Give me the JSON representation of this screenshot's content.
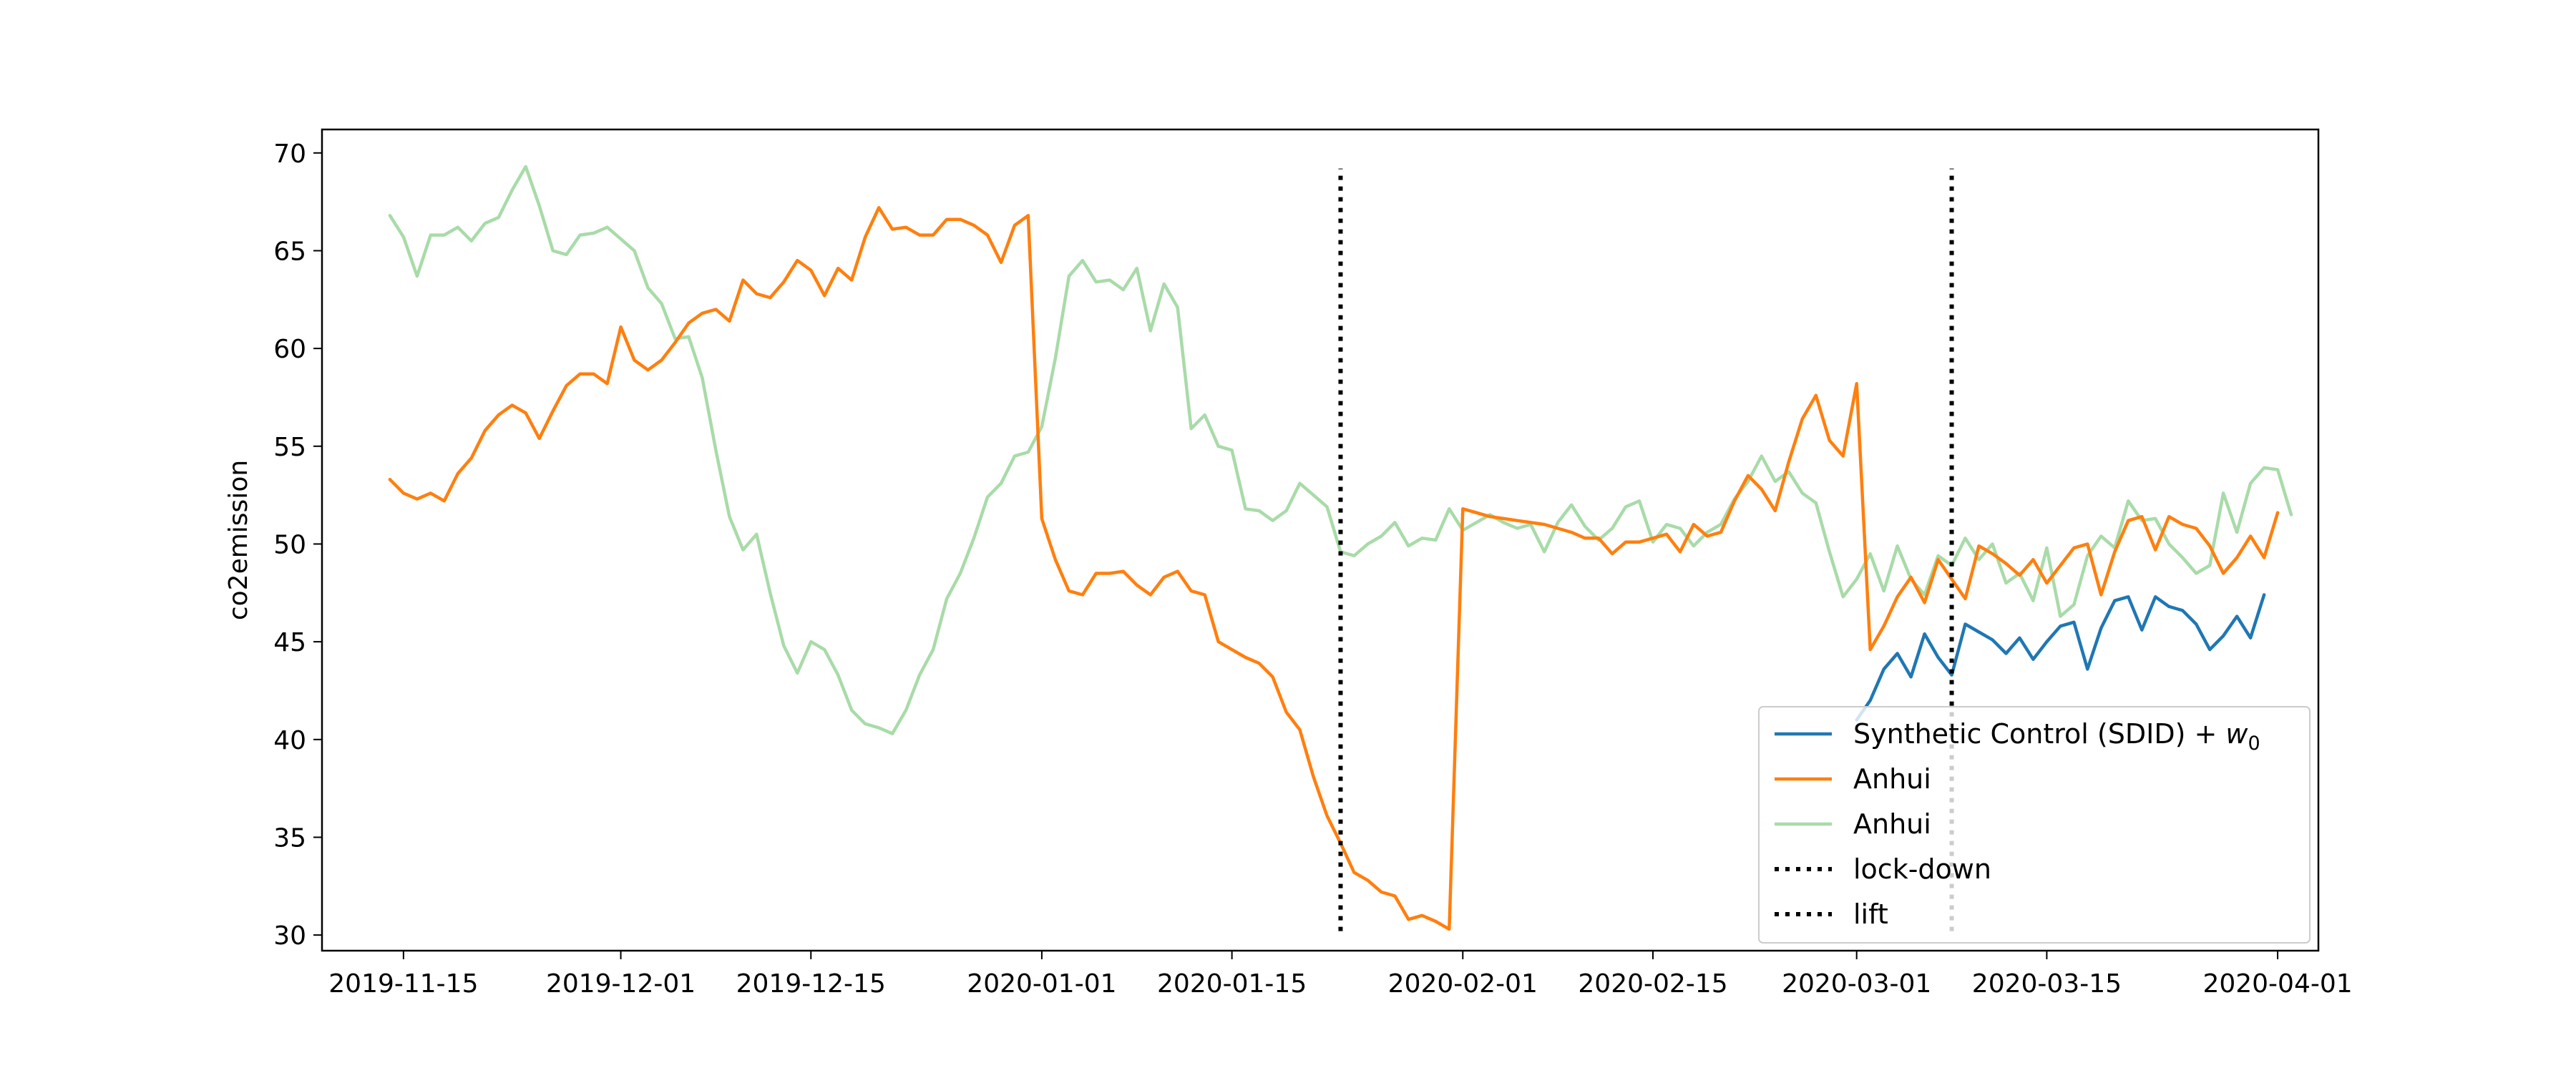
{
  "chart_data": {
    "type": "line",
    "title": "",
    "xlabel": "",
    "ylabel": "co2emission",
    "xlim": [
      "2019-11-09",
      "2020-04-04"
    ],
    "ylim": [
      29.2,
      71.2
    ],
    "x_ticks": [
      "2019-11-15",
      "2019-12-01",
      "2019-12-15",
      "2020-01-01",
      "2020-01-15",
      "2020-02-01",
      "2020-02-15",
      "2020-03-01",
      "2020-03-15",
      "2020-04-01"
    ],
    "y_ticks": [
      30,
      35,
      40,
      45,
      50,
      55,
      60,
      65,
      70
    ],
    "grid": false,
    "legend_position": "bottom-right",
    "legend": [
      {
        "label": "Synthetic Control (SDID) + ",
        "math": "w",
        "sub": "0",
        "color": "#1f77b4",
        "style": "solid"
      },
      {
        "label": "Anhui",
        "color": "#ff7f0e",
        "style": "solid"
      },
      {
        "label": "Anhui",
        "color": "#a8dba8",
        "style": "solid"
      },
      {
        "label": "lock-down",
        "color": "#000000",
        "style": "dotted"
      },
      {
        "label": "lift",
        "color": "#000000",
        "style": "dotted"
      }
    ],
    "series": [
      {
        "color": "#a8dba8",
        "x0": "2019-11-14",
        "values": [
          66.8,
          65.7,
          63.7,
          65.8,
          65.8,
          66.2,
          65.5,
          66.4,
          66.7,
          68.1,
          69.3,
          67.3,
          65.0,
          64.8,
          65.8,
          65.9,
          66.2,
          65.6,
          65.0,
          63.1,
          62.3,
          60.5,
          60.6,
          58.5,
          54.8,
          51.4,
          49.7,
          50.5,
          47.5,
          44.8,
          43.4,
          45.0,
          44.6,
          43.3,
          41.5,
          40.8,
          40.6,
          40.3,
          41.5,
          43.3,
          44.6,
          47.2,
          48.5,
          50.3,
          52.4,
          53.1,
          54.5,
          54.7,
          56.0,
          59.5,
          63.7,
          64.5,
          63.4,
          63.5,
          63.0,
          64.1,
          60.9,
          63.3,
          62.1,
          55.9,
          56.6,
          55.0,
          54.8,
          51.8,
          51.7,
          51.2,
          51.7,
          53.1,
          52.5,
          51.9,
          49.6,
          49.4,
          50.0,
          50.4,
          51.1,
          49.9,
          50.3,
          50.2,
          51.8,
          50.7,
          51.1,
          51.5,
          51.1,
          50.8,
          51.0,
          49.6,
          51.1,
          52.0,
          50.9,
          50.2,
          50.8,
          51.9,
          52.2,
          50.1,
          51.0,
          50.8,
          49.9,
          50.6,
          51.0,
          52.3,
          53.2,
          54.5,
          53.2,
          53.7,
          52.6,
          52.1,
          49.6,
          47.3,
          48.2,
          49.5,
          47.6,
          49.9,
          48.2,
          47.4,
          49.4,
          48.9,
          50.3,
          49.2,
          50.0,
          48.0,
          48.5,
          47.1,
          49.8,
          46.3,
          46.9,
          49.4,
          50.4,
          49.8,
          52.2,
          51.2,
          51.3,
          50.0,
          49.3,
          48.5,
          48.9,
          52.6,
          50.6,
          53.1,
          53.9,
          53.8,
          51.5
        ]
      },
      {
        "color": "#ff7f0e",
        "x0": "2019-11-14",
        "values": [
          53.3,
          52.6,
          52.3,
          52.6,
          52.2,
          53.6,
          54.4,
          55.8,
          56.6,
          57.1,
          56.7,
          55.4,
          56.8,
          58.1,
          58.7,
          58.7,
          58.2,
          61.1,
          59.4,
          58.9,
          59.4,
          60.3,
          61.3,
          61.8,
          62.0,
          61.4,
          63.5,
          62.8,
          62.6,
          63.4,
          64.5,
          64.0,
          62.7,
          64.1,
          63.5,
          65.7,
          67.2,
          66.1,
          66.2,
          65.8,
          65.8,
          66.6,
          66.6,
          66.3,
          65.8,
          64.4,
          66.3,
          66.8,
          51.3,
          49.2,
          47.6,
          47.4,
          48.5,
          48.5,
          48.6,
          47.9,
          47.4,
          48.3,
          48.6,
          47.6,
          47.4,
          45.0,
          44.6,
          44.2,
          43.9,
          43.2,
          41.4,
          40.5,
          38.1,
          36.1,
          34.7,
          33.2,
          32.8,
          32.2,
          32.0,
          30.8,
          31.0,
          30.7,
          30.3,
          51.8,
          51.6,
          51.4,
          51.3,
          51.2,
          51.1,
          51.0,
          50.8,
          50.6,
          50.3,
          50.3,
          49.5,
          50.1,
          50.1,
          50.3,
          50.5,
          49.6,
          51.0,
          50.4,
          50.6,
          52.2,
          53.5,
          52.8,
          51.7,
          54.2,
          56.4,
          57.6,
          55.3,
          54.5,
          58.2,
          44.6,
          45.8,
          47.3,
          48.3,
          47.0,
          49.2,
          48.2,
          47.2,
          49.9,
          49.5,
          49.0,
          48.4,
          49.2,
          48.0,
          48.9,
          49.8,
          50.0,
          47.4,
          49.6,
          51.2,
          51.4,
          49.7,
          51.4,
          51.0,
          50.8,
          49.9,
          48.5,
          49.3,
          50.4,
          49.3,
          51.6
        ]
      },
      {
        "color": "#1f77b4",
        "x0": "2020-03-01",
        "values": [
          41.0,
          42.0,
          43.6,
          44.4,
          43.2,
          45.4,
          44.2,
          43.3,
          45.9,
          45.5,
          45.1,
          44.4,
          45.2,
          44.1,
          45.0,
          45.8,
          46.0,
          43.6,
          45.7,
          47.1,
          47.3,
          45.6,
          47.3,
          46.8,
          46.6,
          45.9,
          44.6,
          45.3,
          46.3,
          45.2,
          47.4
        ]
      }
    ],
    "vertical_lines": [
      {
        "label": "lock-down",
        "x": "2020-01-23",
        "ymin": 30.2,
        "ymax": 69.2
      },
      {
        "label": "lift",
        "x": "2020-03-08",
        "ymin": 30.2,
        "ymax": 69.2
      }
    ]
  }
}
